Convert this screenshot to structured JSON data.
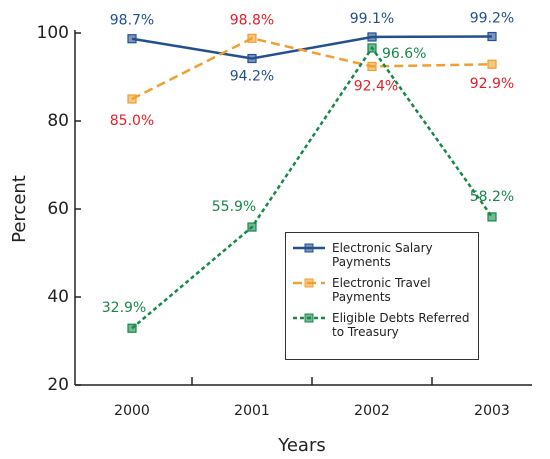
{
  "chart_data": {
    "type": "line",
    "categories": [
      "2000",
      "2001",
      "2002",
      "2003"
    ],
    "xlabel": "Years",
    "ylabel": "Percent",
    "ylim": [
      20,
      100
    ],
    "yticks": [
      20,
      40,
      60,
      80,
      100
    ],
    "series": [
      {
        "name": "Electronic Salary Payments",
        "color": "#24508f",
        "label_color": "#24508f",
        "dash": "solid",
        "values": [
          98.7,
          94.2,
          99.1,
          99.2
        ],
        "value_labels": [
          "98.7%",
          "94.2%",
          "99.1%",
          "99.2%"
        ]
      },
      {
        "name": "Electronic Travel Payments",
        "color": "#f0a030",
        "label_color": "#e0202a",
        "dash": "dashed",
        "values": [
          85.0,
          98.8,
          92.4,
          92.9
        ],
        "value_labels": [
          "85.0%",
          "98.8%",
          "92.4%",
          "92.9%"
        ]
      },
      {
        "name": "Eligible Debts Referred to Treasury",
        "color": "#17884a",
        "label_color": "#17884a",
        "dash": "dotted",
        "values": [
          32.9,
          55.9,
          96.6,
          58.2
        ],
        "value_labels": [
          "32.9%",
          "55.9%",
          "96.6%",
          "58.2%"
        ]
      }
    ]
  }
}
